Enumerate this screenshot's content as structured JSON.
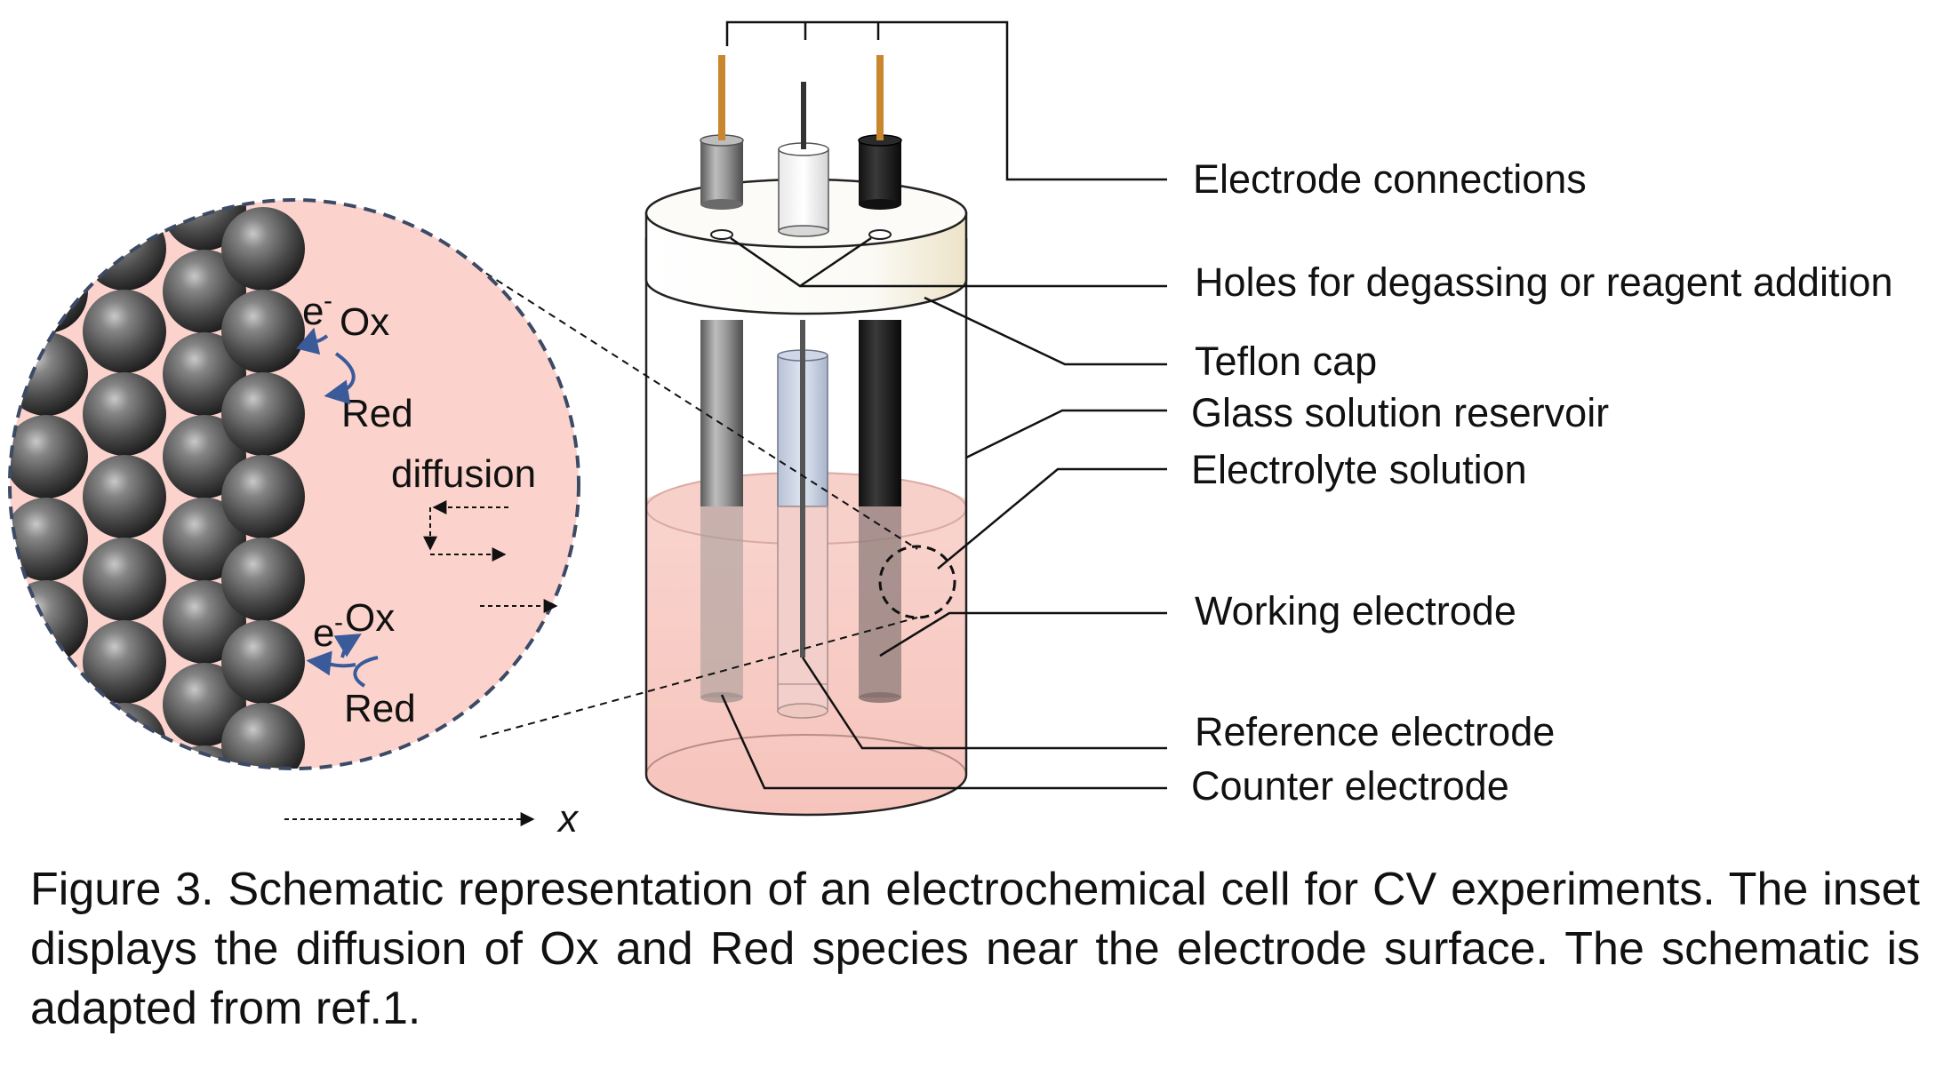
{
  "labels": {
    "electrode_connections": "Electrode connections",
    "holes": "Holes for degassing or reagent addition",
    "teflon_cap": "Teflon cap",
    "glass_reservoir": "Glass solution reservoir",
    "electrolyte": "Electrolyte solution",
    "working_electrode": "Working electrode",
    "reference_electrode": "Reference electrode",
    "counter_electrode": "Counter electrode"
  },
  "inset": {
    "electron": "e",
    "electron_superscript": "-",
    "ox": "Ox",
    "red": "Red",
    "diffusion": "diffusion",
    "axis_label": "x"
  },
  "caption": "Figure 3. Schematic representation of an electrochemical cell for CV experiments. The inset displays the diffusion of Ox and Red species near the electrode surface. The schematic is adapted from ref.1.",
  "colors": {
    "solution_pink": "#f7c9c3",
    "inset_pink": "#fbd3cc",
    "electrode_wire_copper": "#c8862e",
    "sphere_dark": "#4a4a4a",
    "arrow_blue": "#3a5a9a",
    "leader_line": "#111111",
    "dashed_outline": "#3c4a66"
  }
}
